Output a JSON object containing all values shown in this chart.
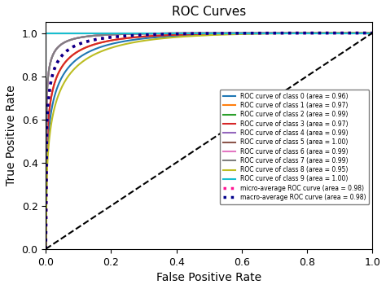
{
  "title": "ROC Curves",
  "xlabel": "False Positive Rate",
  "ylabel": "True Positive Rate",
  "classes": [
    {
      "label": "ROC curve of class 0 (area = 0.96)",
      "color": "#1f77b4",
      "auc": 0.96
    },
    {
      "label": "ROC curve of class 1 (area = 0.97)",
      "color": "#ff7f0e",
      "auc": 0.97
    },
    {
      "label": "ROC curve of class 2 (area = 0.99)",
      "color": "#2ca02c",
      "auc": 0.99
    },
    {
      "label": "ROC curve of class 3 (area = 0.97)",
      "color": "#d62728",
      "auc": 0.97
    },
    {
      "label": "ROC curve of class 4 (area = 0.99)",
      "color": "#9467bd",
      "auc": 0.99
    },
    {
      "label": "ROC curve of class 5 (area = 1.00)",
      "color": "#8c564b",
      "auc": 1.0
    },
    {
      "label": "ROC curve of class 6 (area = 0.99)",
      "color": "#e377c2",
      "auc": 0.99
    },
    {
      "label": "ROC curve of class 7 (area = 0.99)",
      "color": "#7f7f7f",
      "auc": 0.99
    },
    {
      "label": "ROC curve of class 8 (area = 0.95)",
      "color": "#bcbd22",
      "auc": 0.95
    },
    {
      "label": "ROC curve of class 9 (area = 1.00)",
      "color": "#17becf",
      "auc": 1.0
    }
  ],
  "micro_label": "micro-average ROC curve (area = 0.98)",
  "micro_color": "#ff1493",
  "macro_label": "macro-average ROC curve (area = 0.98)",
  "macro_color": "#00008b",
  "background_color": "#ffffff",
  "figsize": [
    4.74,
    3.55
  ],
  "dpi": 100
}
